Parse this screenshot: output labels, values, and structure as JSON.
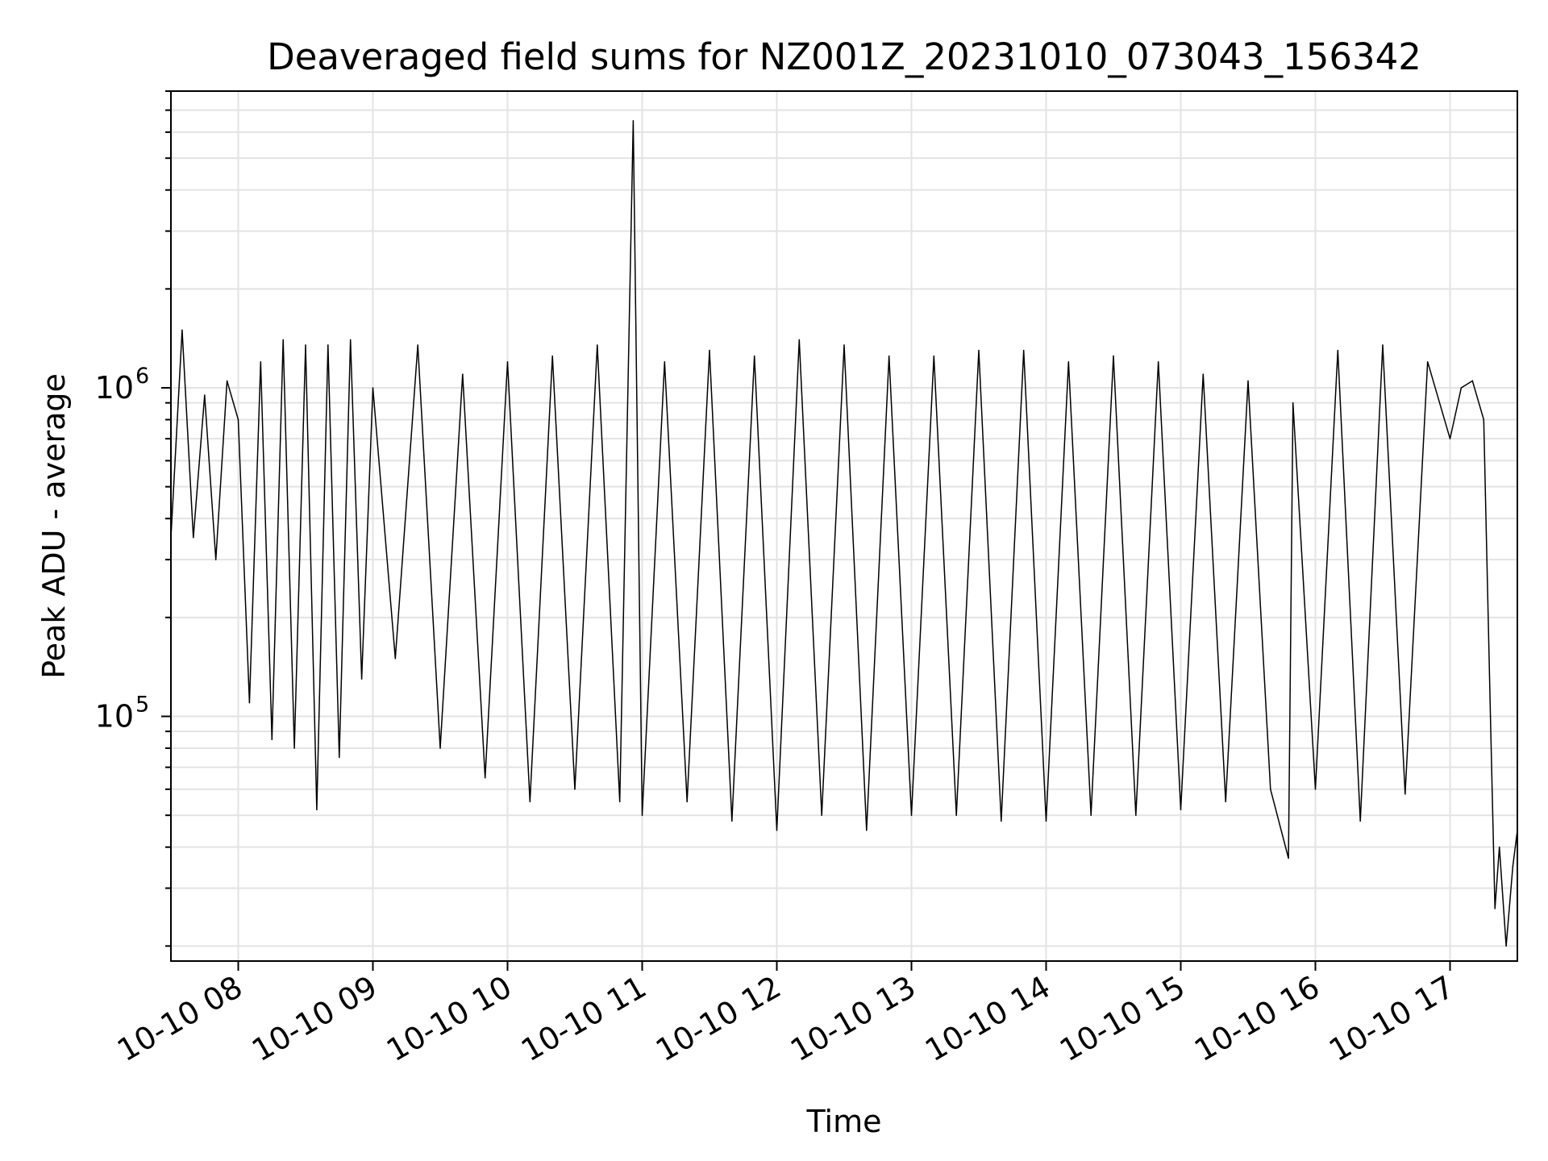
{
  "chart_data": {
    "type": "line",
    "title": "Deaveraged field sums for NZ001Z_20231010_073043_156342",
    "xlabel": "Time",
    "ylabel": "Peak ADU - average",
    "yscale": "log",
    "xlim": [
      "2023-10-10 07:30",
      "2023-10-10 17:30"
    ],
    "ylim": [
      18000,
      8000000
    ],
    "grid": true,
    "x_ticks": [
      "10-10 08",
      "10-10 09",
      "10-10 10",
      "10-10 11",
      "10-10 12",
      "10-10 13",
      "10-10 14",
      "10-10 15",
      "10-10 16",
      "10-10 17"
    ],
    "y_ticks": [
      {
        "value": 100000,
        "base": "10",
        "exp": "5"
      },
      {
        "value": 1000000,
        "base": "10",
        "exp": "6"
      }
    ],
    "series": [
      {
        "color": "#000000",
        "x": [
          "2023-10-10 07:30",
          "2023-10-10 07:35",
          "2023-10-10 07:40",
          "2023-10-10 07:45",
          "2023-10-10 07:50",
          "2023-10-10 07:55",
          "2023-10-10 08:00",
          "2023-10-10 08:05",
          "2023-10-10 08:10",
          "2023-10-10 08:15",
          "2023-10-10 08:20",
          "2023-10-10 08:25",
          "2023-10-10 08:30",
          "2023-10-10 08:35",
          "2023-10-10 08:40",
          "2023-10-10 08:45",
          "2023-10-10 08:50",
          "2023-10-10 08:55",
          "2023-10-10 09:00",
          "2023-10-10 09:10",
          "2023-10-10 09:20",
          "2023-10-10 09:30",
          "2023-10-10 09:40",
          "2023-10-10 09:50",
          "2023-10-10 10:00",
          "2023-10-10 10:10",
          "2023-10-10 10:20",
          "2023-10-10 10:30",
          "2023-10-10 10:40",
          "2023-10-10 10:50",
          "2023-10-10 10:56",
          "2023-10-10 11:00",
          "2023-10-10 11:10",
          "2023-10-10 11:20",
          "2023-10-10 11:30",
          "2023-10-10 11:40",
          "2023-10-10 11:50",
          "2023-10-10 12:00",
          "2023-10-10 12:10",
          "2023-10-10 12:20",
          "2023-10-10 12:30",
          "2023-10-10 12:40",
          "2023-10-10 12:50",
          "2023-10-10 13:00",
          "2023-10-10 13:10",
          "2023-10-10 13:20",
          "2023-10-10 13:30",
          "2023-10-10 13:40",
          "2023-10-10 13:50",
          "2023-10-10 14:00",
          "2023-10-10 14:10",
          "2023-10-10 14:20",
          "2023-10-10 14:30",
          "2023-10-10 14:40",
          "2023-10-10 14:50",
          "2023-10-10 15:00",
          "2023-10-10 15:10",
          "2023-10-10 15:20",
          "2023-10-10 15:30",
          "2023-10-10 15:40",
          "2023-10-10 15:48",
          "2023-10-10 15:50",
          "2023-10-10 16:00",
          "2023-10-10 16:10",
          "2023-10-10 16:20",
          "2023-10-10 16:30",
          "2023-10-10 16:40",
          "2023-10-10 16:50",
          "2023-10-10 17:00",
          "2023-10-10 17:05",
          "2023-10-10 17:10",
          "2023-10-10 17:15",
          "2023-10-10 17:18",
          "2023-10-10 17:20",
          "2023-10-10 17:22",
          "2023-10-10 17:25",
          "2023-10-10 17:28",
          "2023-10-10 17:30"
        ],
        "y": [
          350000,
          1500000,
          350000,
          950000,
          300000,
          1050000,
          800000,
          110000,
          1200000,
          85000,
          1400000,
          80000,
          1350000,
          52000,
          1350000,
          75000,
          1400000,
          130000,
          1000000,
          150000,
          1350000,
          80000,
          1100000,
          65000,
          1200000,
          55000,
          1250000,
          60000,
          1350000,
          55000,
          6500000,
          50000,
          1200000,
          55000,
          1300000,
          48000,
          1250000,
          45000,
          1400000,
          50000,
          1350000,
          45000,
          1250000,
          50000,
          1250000,
          50000,
          1300000,
          48000,
          1300000,
          48000,
          1200000,
          50000,
          1250000,
          50000,
          1200000,
          52000,
          1100000,
          55000,
          1050000,
          60000,
          37000,
          900000,
          60000,
          1300000,
          48000,
          1350000,
          58000,
          1200000,
          700000,
          1000000,
          1050000,
          800000,
          100000,
          26000,
          40000,
          20000,
          35000,
          45000
        ]
      }
    ]
  }
}
